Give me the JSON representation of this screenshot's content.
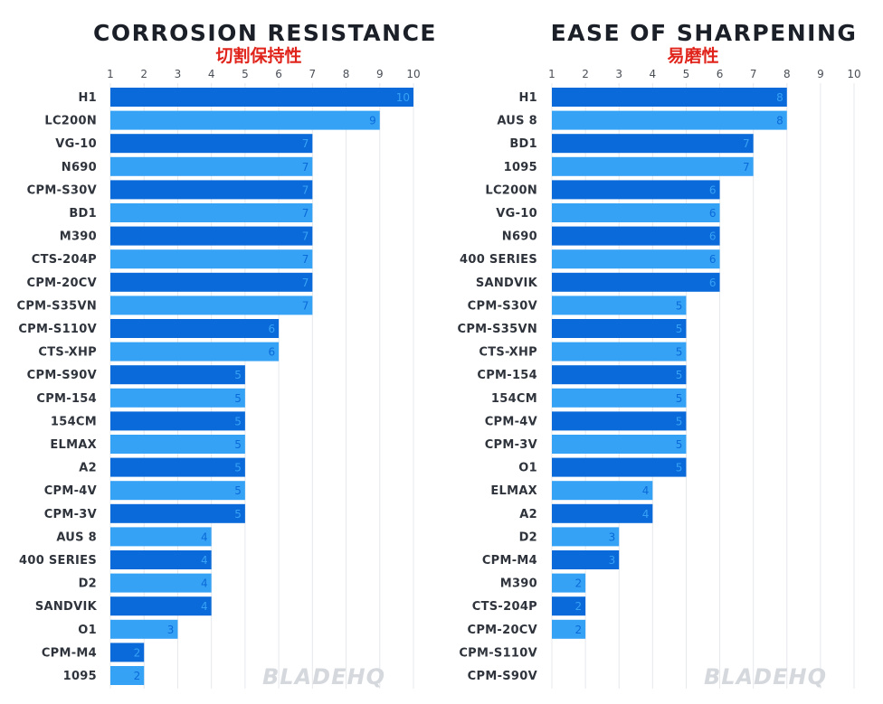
{
  "colors": {
    "dark": "#0a6ad9",
    "light": "#36a2f5",
    "label_on_dark": "#36a2f5",
    "label_on_light": "#0a6ad9",
    "watermark": "#d5d8dd"
  },
  "watermark": "BLADEHQ",
  "chart_data": [
    {
      "type": "bar",
      "orientation": "horizontal",
      "title": "CORROSION RESISTANCE",
      "subtitle": "切割保持性",
      "xlim": [
        1,
        10
      ],
      "ticks": [
        1,
        2,
        3,
        4,
        5,
        6,
        7,
        8,
        9,
        10
      ],
      "grid": true,
      "categories": [
        "H1",
        "LC200N",
        "VG-10",
        "N690",
        "CPM-S30V",
        "BD1",
        "M390",
        "CTS-204P",
        "CPM-20CV",
        "CPM-S35VN",
        "CPM-S110V",
        "CTS-XHP",
        "CPM-S90V",
        "CPM-154",
        "154CM",
        "ELMAX",
        "A2",
        "CPM-4V",
        "CPM-3V",
        "AUS 8",
        "400 SERIES",
        "D2",
        "SANDVIK",
        "O1",
        "CPM-M4",
        "1095"
      ],
      "values": [
        10,
        9,
        7,
        7,
        7,
        7,
        7,
        7,
        7,
        7,
        6,
        6,
        5,
        5,
        5,
        5,
        5,
        5,
        5,
        4,
        4,
        4,
        4,
        3,
        2,
        2
      ]
    },
    {
      "type": "bar",
      "orientation": "horizontal",
      "title": "EASE OF SHARPENING",
      "subtitle": "易磨性",
      "xlim": [
        1,
        10
      ],
      "ticks": [
        1,
        2,
        3,
        4,
        5,
        6,
        7,
        8,
        9,
        10
      ],
      "grid": true,
      "categories": [
        "H1",
        "AUS 8",
        "BD1",
        "1095",
        "LC200N",
        "VG-10",
        "N690",
        "400 SERIES",
        "SANDVIK",
        "CPM-S30V",
        "CPM-S35VN",
        "CTS-XHP",
        "CPM-154",
        "154CM",
        "CPM-4V",
        "CPM-3V",
        "O1",
        "ELMAX",
        "A2",
        "D2",
        "CPM-M4",
        "M390",
        "CTS-204P",
        "CPM-20CV",
        "CPM-S110V",
        "CPM-S90V"
      ],
      "values": [
        8,
        8,
        7,
        7,
        6,
        6,
        6,
        6,
        6,
        5,
        5,
        5,
        5,
        5,
        5,
        5,
        5,
        4,
        4,
        3,
        3,
        2,
        2,
        2,
        1,
        1
      ]
    }
  ]
}
